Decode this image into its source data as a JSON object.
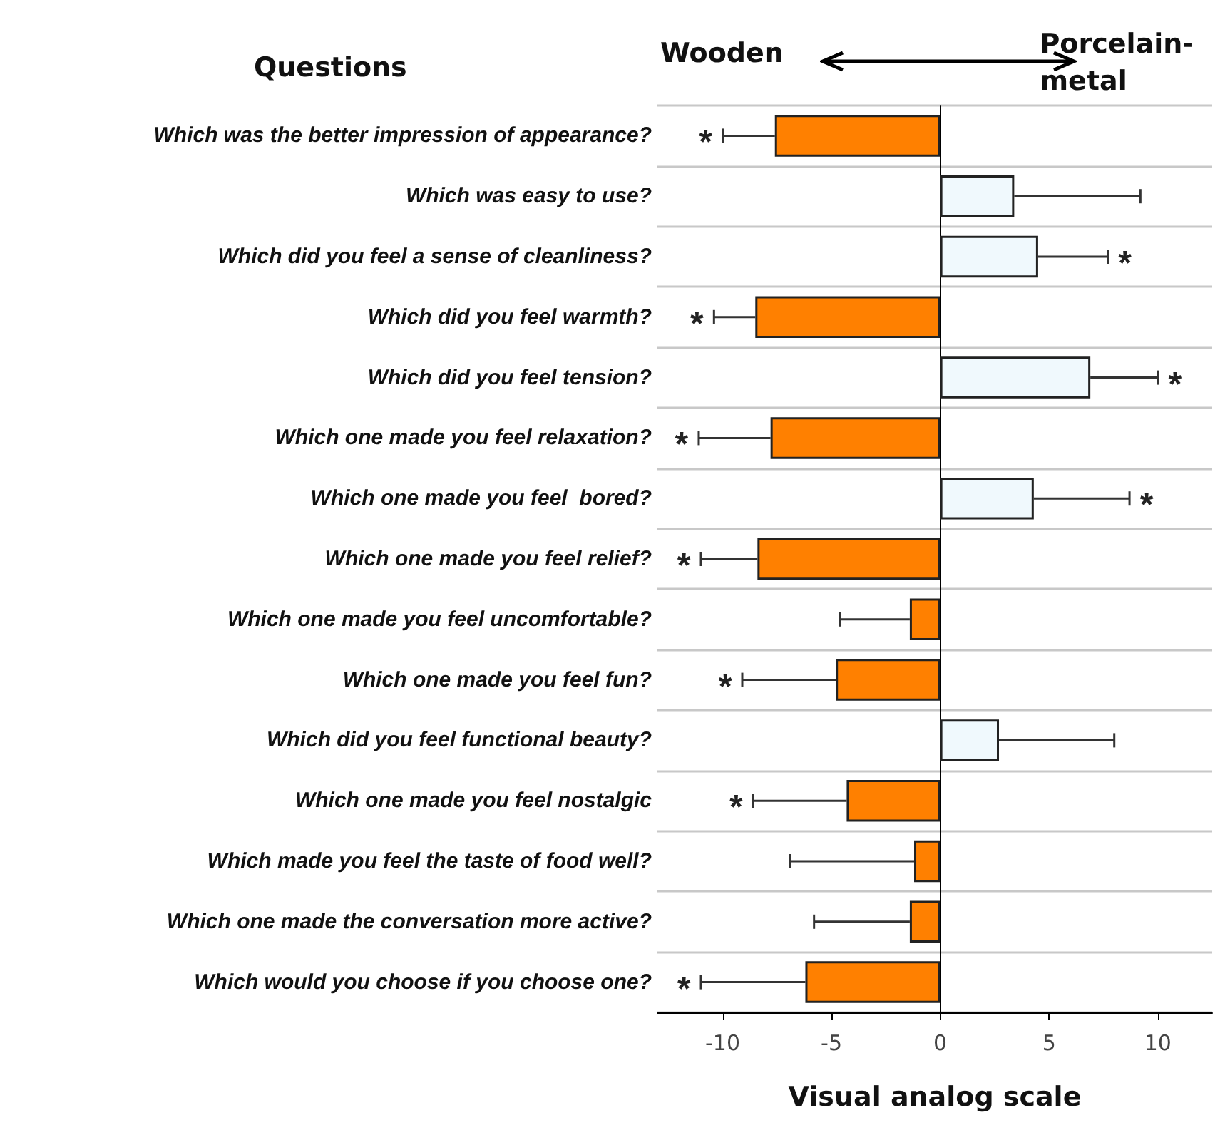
{
  "chart_data": {
    "type": "bar",
    "orientation": "horizontal",
    "xlabel": "Visual analog scale",
    "ylabel": "Questions",
    "categories": [
      "Which was the better impression of appearance?",
      "Which was easy to use?",
      "Which did you feel a sense of cleanliness?",
      "Which did you feel warmth?",
      "Which did you feel tension?",
      "Which one made you feel relaxation?",
      "Which one made you feel  bored?",
      "Which one made you feel relief?",
      "Which one made you feel uncomfortable?",
      "Which one made you feel fun?",
      "Which did you feel functional beauty?",
      "Which one made you feel nostalgic",
      "Which made you feel the taste of food well?",
      "Which one made the conversation more active?",
      "Which would you choose if you choose one?"
    ],
    "values": [
      -7.6,
      3.4,
      4.5,
      -8.5,
      6.9,
      -7.8,
      4.3,
      -8.4,
      -1.4,
      -4.8,
      2.7,
      -4.3,
      -1.2,
      -1.4,
      -6.2
    ],
    "colors": [
      "#ff8000",
      "#f0f9fd",
      "#f0f9fd",
      "#ff8000",
      "#f0f9fd",
      "#ff8000",
      "#f0f9fd",
      "#ff8000",
      "#ff8000",
      "#ff8000",
      "#f0f9fd",
      "#ff8000",
      "#ff8000",
      "#ff8000",
      "#ff8000"
    ],
    "errors": [
      [
        -10.0,
        -7.6
      ],
      [
        3.4,
        9.2
      ],
      [
        4.5,
        7.7
      ],
      [
        -10.4,
        -8.5
      ],
      [
        6.9,
        10.0
      ],
      [
        -11.1,
        -7.8
      ],
      [
        4.3,
        8.7
      ],
      [
        -11.0,
        -8.4
      ],
      [
        -4.6,
        -1.4
      ],
      [
        -9.1,
        -4.8
      ],
      [
        2.7,
        8.0
      ],
      [
        -8.6,
        -4.3
      ],
      [
        -6.9,
        -1.2
      ],
      [
        -5.8,
        -1.4
      ],
      [
        -11.0,
        -6.2
      ]
    ],
    "xlim": [
      -13,
      12.5
    ],
    "xticks": [
      -10,
      -5,
      0,
      5,
      10
    ],
    "grid": "y",
    "annotations": [
      "Wooden",
      "Porcelain-metal",
      {
        "text": "*",
        "x": -10.0,
        "y": "Which was the better impression of appearance?"
      },
      {
        "text": "*",
        "x": 7.7,
        "y": "Which did you feel a sense of cleanliness?"
      },
      {
        "text": "*",
        "x": -10.4,
        "y": "Which did you feel warmth?"
      },
      {
        "text": "*",
        "x": 10.0,
        "y": "Which did you feel tension?"
      },
      {
        "text": "*",
        "x": -11.1,
        "y": "Which one made you feel relaxation?"
      },
      {
        "text": "*",
        "x": 8.7,
        "y": "Which one made you feel  bored?"
      },
      {
        "text": "*",
        "x": -11.0,
        "y": "Which one made you feel relief?"
      },
      {
        "text": "*",
        "x": -9.1,
        "y": "Which one made you feel fun?"
      },
      {
        "text": "*",
        "x": -8.6,
        "y": "Which one made you feel nostalgic"
      },
      {
        "text": "*",
        "x": -11.0,
        "y": "Which would you choose if you choose one?"
      }
    ]
  }
}
